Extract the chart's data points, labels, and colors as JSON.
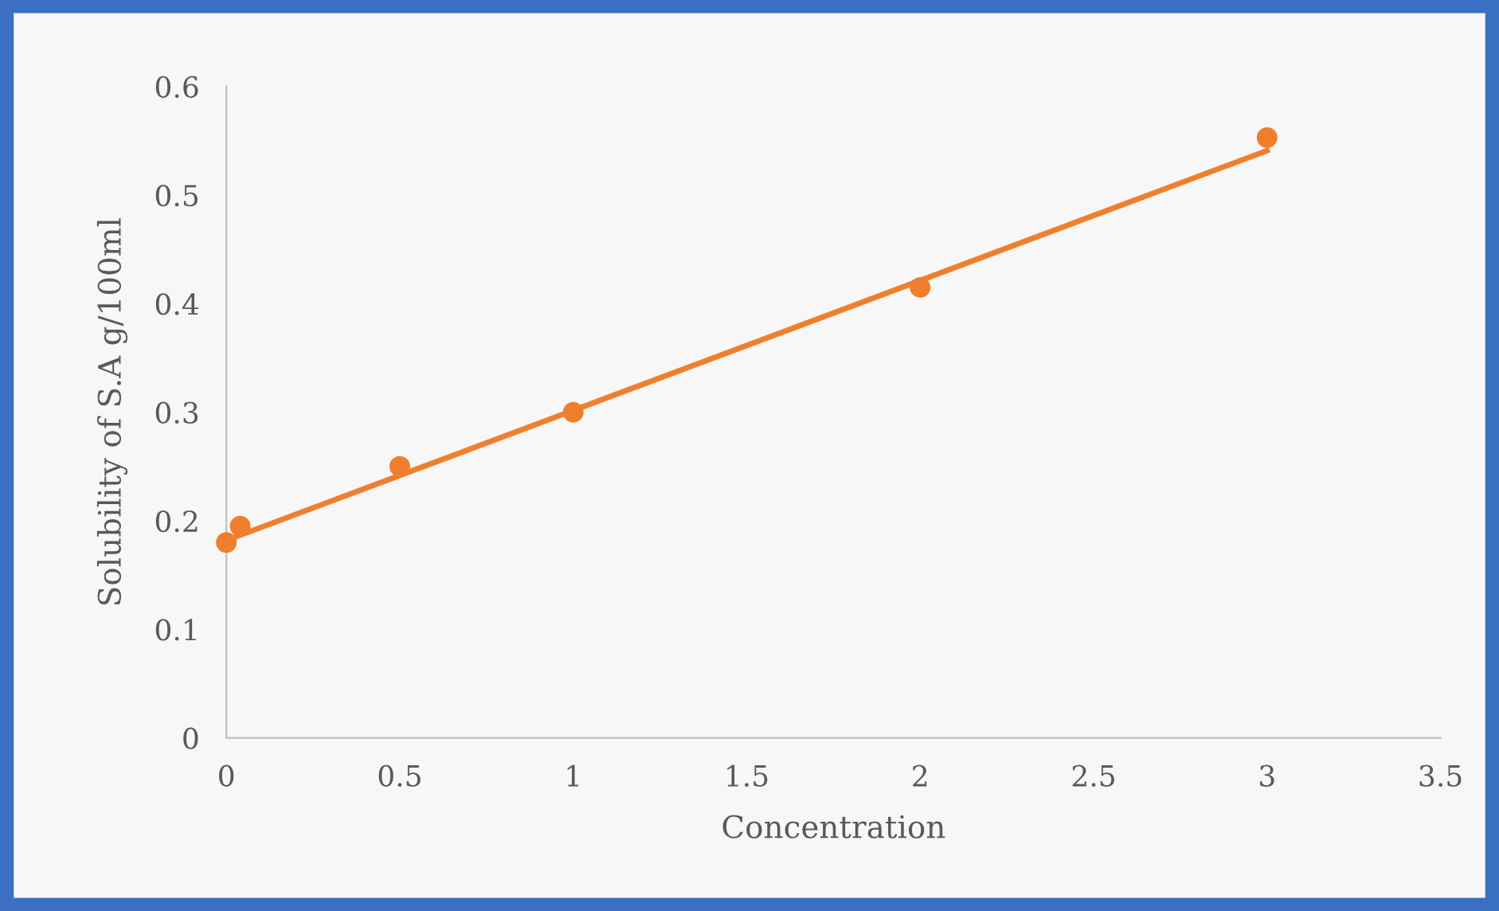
{
  "chart_data": {
    "type": "scatter",
    "xlabel": "Concentration",
    "ylabel": "Solubility of S.A g/100ml",
    "series": [
      {
        "color": "#f07f2d",
        "marker": "circle",
        "x": [
          0,
          0.04,
          0.5,
          1,
          2,
          3
        ],
        "values": [
          0.18,
          0.195,
          0.25,
          0.3,
          0.415,
          0.553
        ]
      },
      {
        "type": "line",
        "color": "#f07f2d",
        "marker": "none",
        "line_style": "solid",
        "x": [
          0,
          3
        ],
        "values": [
          0.182,
          0.541
        ]
      }
    ],
    "xlim": [
      0,
      3.5
    ],
    "xticks": [
      0,
      0.5,
      1,
      1.5,
      2,
      2.5,
      3,
      3.5
    ],
    "ylim": [
      0,
      0.6
    ],
    "yticks": [
      0,
      0.1,
      0.2,
      0.3,
      0.4,
      0.5,
      0.6
    ],
    "grid": false,
    "legend": false
  }
}
